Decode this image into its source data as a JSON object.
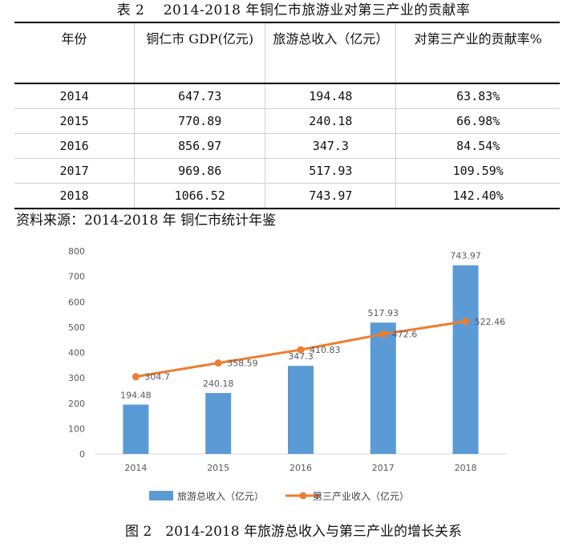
{
  "table": {
    "caption": "表 2　 2014-2018 年铜仁市旅游业对第三产业的贡献率",
    "headers": [
      "年份",
      "铜仁市 GDP(亿元)",
      "旅游总收入（亿元）",
      "对第三产业的贡献率%"
    ],
    "rows": [
      [
        "2014",
        "647.73",
        "194.48",
        "63.83%"
      ],
      [
        "2015",
        "770.89",
        "240.18",
        "66.98%"
      ],
      [
        "2016",
        "856.97",
        "347.3",
        "84.54%"
      ],
      [
        "2017",
        "969.86",
        "517.93",
        "109.59%"
      ],
      [
        "2018",
        "1066.52",
        "743.97",
        "142.40%"
      ]
    ],
    "source": "资料来源：2014-2018 年 铜仁市统计年鉴"
  },
  "chart_data": {
    "type": "bar",
    "categories": [
      "2014",
      "2015",
      "2016",
      "2017",
      "2018"
    ],
    "ylim": [
      0,
      800
    ],
    "yticks": [
      0,
      100,
      200,
      300,
      400,
      500,
      600,
      700,
      800
    ],
    "grid": false,
    "legend_position": "bottom",
    "series": [
      {
        "name": "旅游总收入（亿元）",
        "type": "bar",
        "values": [
          194.48,
          240.18,
          347.3,
          517.93,
          743.97
        ],
        "labels": [
          "194.48",
          "240.18",
          "347.3",
          "517.93",
          "743.97"
        ],
        "color": "#5b9bd5"
      },
      {
        "name": "第三产业收入（亿元）",
        "type": "line",
        "values": [
          304.7,
          358.59,
          410.83,
          472.6,
          522.46
        ],
        "labels": [
          "304.7",
          "358.59",
          "410.83",
          "472.6",
          "522.46"
        ],
        "color": "#ed7d31"
      }
    ]
  },
  "figure_caption": "图 2　2014-2018 年旅游总收入与第三产业的增长关系"
}
